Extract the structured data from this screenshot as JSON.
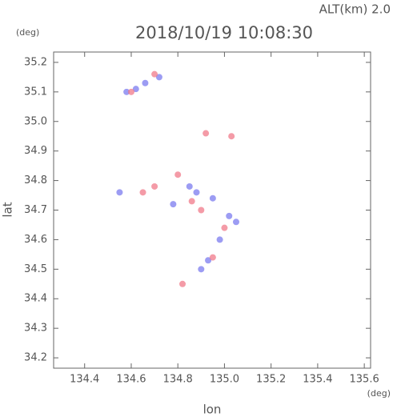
{
  "chart_data": {
    "type": "scatter",
    "annotation": "ALT(km) 2.0",
    "y_unit": "(deg)",
    "title": "2018/10/19 10:08:30",
    "y_label": "lat",
    "x_label": "lon",
    "x_unit": "(deg)",
    "xlim": [
      134.267,
      135.627
    ],
    "ylim": [
      34.165,
      35.235
    ],
    "xticks": [
      134.4,
      134.6,
      134.8,
      {
        "value": 135.0,
        "label": "135.0"
      },
      135.2,
      135.4,
      135.6
    ],
    "yticks": [
      34.2,
      34.3,
      34.4,
      34.5,
      34.6,
      34.7,
      34.8,
      34.9,
      {
        "value": 35.0,
        "label": "35.0"
      },
      35.1,
      35.2
    ],
    "series": [
      {
        "color": "#7b7bef",
        "x": [
          134.58,
          134.62,
          134.66,
          134.72,
          134.85,
          134.88,
          134.95,
          135.02,
          134.98,
          134.9,
          134.93,
          134.55,
          134.78,
          135.05
        ],
        "y": [
          35.1,
          35.11,
          35.13,
          35.15,
          34.78,
          34.76,
          34.74,
          34.68,
          34.6,
          34.5,
          34.53,
          34.76,
          34.72,
          34.66
        ]
      },
      {
        "color": "#f07a8a",
        "x": [
          134.6,
          134.7,
          134.92,
          135.03,
          134.8,
          134.7,
          134.65,
          134.9,
          135.0,
          134.95,
          134.82,
          134.86
        ],
        "y": [
          35.1,
          35.16,
          34.96,
          34.95,
          34.82,
          34.78,
          34.76,
          34.7,
          34.64,
          34.54,
          34.45,
          34.73
        ]
      }
    ]
  }
}
